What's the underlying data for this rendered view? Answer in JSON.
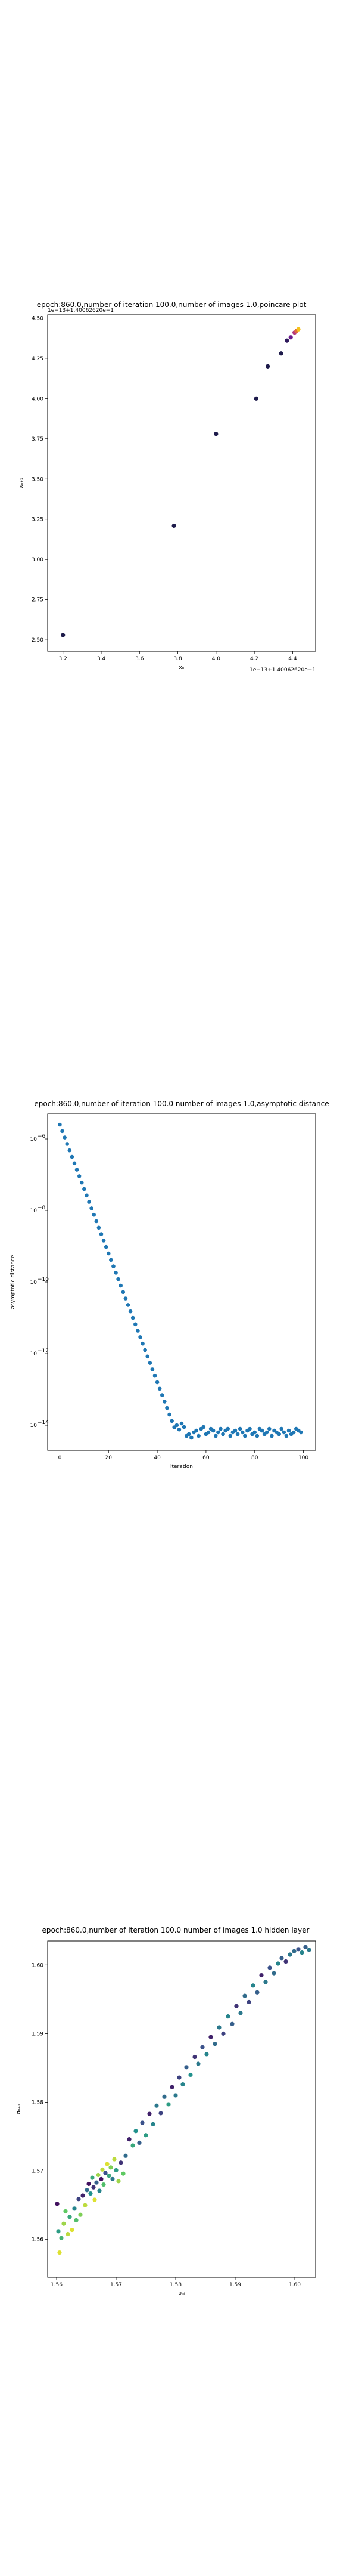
{
  "chart_data": [
    {
      "type": "scatter",
      "title": "epoch:860.0,number of iteration 100.0,number of images 1.0,poincare plot",
      "xlabel": "xₙ",
      "ylabel": "xₙ₊₁",
      "offset_text_x": "1e−13+1.40062620e−1",
      "offset_text_y": "1e−13+1.40062620e−1",
      "xlim": [
        3.12,
        4.52
      ],
      "ylim": [
        2.43,
        4.52
      ],
      "xticks": [
        3.2,
        3.4,
        3.6,
        3.8,
        4.0,
        4.2,
        4.4
      ],
      "xtick_labels": [
        "3.2",
        "3.4",
        "3.6",
        "3.8",
        "4.0",
        "4.2",
        "4.4"
      ],
      "yticks": [
        2.5,
        2.75,
        3.0,
        3.25,
        3.5,
        3.75,
        4.0,
        4.25,
        4.5
      ],
      "ytick_labels": [
        "2.50",
        "2.75",
        "3.00",
        "3.25",
        "3.50",
        "3.75",
        "4.00",
        "4.25",
        "4.50"
      ],
      "grid": false,
      "points": [
        {
          "x": 3.2,
          "y": 2.53,
          "color": "#1e1b4b"
        },
        {
          "x": 3.78,
          "y": 3.21,
          "color": "#1e1b4b"
        },
        {
          "x": 4.0,
          "y": 3.78,
          "color": "#1e1b4b"
        },
        {
          "x": 4.21,
          "y": 4.0,
          "color": "#1e1b4b"
        },
        {
          "x": 4.27,
          "y": 4.2,
          "color": "#1e1b4b"
        },
        {
          "x": 4.34,
          "y": 4.28,
          "color": "#1e1b4b"
        },
        {
          "x": 4.37,
          "y": 4.36,
          "color": "#2e1a5c"
        },
        {
          "x": 4.39,
          "y": 4.38,
          "color": "#6a1a8c"
        },
        {
          "x": 4.41,
          "y": 4.41,
          "color": "#b43a7e"
        },
        {
          "x": 4.42,
          "y": 4.42,
          "color": "#e06a3a"
        },
        {
          "x": 4.43,
          "y": 4.43,
          "color": "#f5c21a"
        }
      ]
    },
    {
      "type": "scatter",
      "title": "epoch:860.0,number of iteration 100.0  number of images 1.0,asymptotic distance",
      "xlabel": "iteration",
      "ylabel": "asymptotic distance",
      "xlim": [
        -5,
        105
      ],
      "ylim_log10": [
        -14.7,
        -5.3
      ],
      "y_scale": "log",
      "xticks": [
        0,
        20,
        40,
        60,
        80,
        100
      ],
      "xtick_labels": [
        "0",
        "20",
        "40",
        "60",
        "80",
        "100"
      ],
      "ytick_exponents": [
        -6,
        -8,
        -10,
        -12,
        -14
      ],
      "ytick_bases": [
        "10",
        "10",
        "10",
        "10",
        "10"
      ],
      "ytick_powers": [
        "−6",
        "−8",
        "−10",
        "−12",
        "−14"
      ],
      "grid": false,
      "color": "#1f77b4",
      "x": [
        0,
        1,
        2,
        3,
        4,
        5,
        6,
        7,
        8,
        9,
        10,
        11,
        12,
        13,
        14,
        15,
        16,
        17,
        18,
        19,
        20,
        21,
        22,
        23,
        24,
        25,
        26,
        27,
        28,
        29,
        30,
        31,
        32,
        33,
        34,
        35,
        36,
        37,
        38,
        39,
        40,
        41,
        42,
        43,
        44,
        45,
        46,
        47,
        48,
        49,
        50,
        51,
        52,
        53,
        54,
        55,
        56,
        57,
        58,
        59,
        60,
        61,
        62,
        63,
        64,
        65,
        66,
        67,
        68,
        69,
        70,
        71,
        72,
        73,
        74,
        75,
        76,
        77,
        78,
        79,
        80,
        81,
        82,
        83,
        84,
        85,
        86,
        87,
        88,
        89,
        90,
        91,
        92,
        93,
        94,
        95,
        96,
        97,
        98,
        99
      ],
      "log10_y": [
        -5.6,
        -5.78,
        -5.96,
        -6.14,
        -6.32,
        -6.5,
        -6.68,
        -6.86,
        -7.04,
        -7.22,
        -7.4,
        -7.58,
        -7.76,
        -7.94,
        -8.12,
        -8.3,
        -8.48,
        -8.66,
        -8.84,
        -9.02,
        -9.2,
        -9.38,
        -9.56,
        -9.74,
        -9.92,
        -10.1,
        -10.28,
        -10.46,
        -10.64,
        -10.82,
        -11.0,
        -11.18,
        -11.36,
        -11.54,
        -11.72,
        -11.9,
        -12.08,
        -12.26,
        -12.44,
        -12.62,
        -12.8,
        -12.98,
        -13.16,
        -13.34,
        -13.52,
        -13.7,
        -13.88,
        -14.06,
        -14.0,
        -14.12,
        -13.95,
        -14.05,
        -14.3,
        -14.25,
        -14.35,
        -14.2,
        -14.15,
        -14.3,
        -14.1,
        -14.05,
        -14.25,
        -14.2,
        -14.1,
        -14.15,
        -14.3,
        -14.2,
        -14.1,
        -14.25,
        -14.15,
        -14.1,
        -14.3,
        -14.2,
        -14.15,
        -14.25,
        -14.1,
        -14.2,
        -14.3,
        -14.15,
        -14.1,
        -14.25,
        -14.2,
        -14.3,
        -14.1,
        -14.15,
        -14.25,
        -14.2,
        -14.1,
        -14.3,
        -14.15,
        -14.2,
        -14.25,
        -14.1,
        -14.2,
        -14.3,
        -14.15,
        -14.25,
        -14.2,
        -14.1,
        -14.15,
        -14.2
      ]
    },
    {
      "type": "scatter",
      "title": "epoch:860.0,number of iteration 100.0  number of images 1.0 hidden layer",
      "xlabel": "σₙᵢ",
      "ylabel": "σₙ₊₁",
      "xlim": [
        1.5585,
        1.6035
      ],
      "ylim": [
        1.5545,
        1.6035
      ],
      "xticks": [
        1.56,
        1.57,
        1.58,
        1.59,
        1.6
      ],
      "xtick_labels": [
        "1.56",
        "1.57",
        "1.58",
        "1.59",
        "1.60"
      ],
      "yticks": [
        1.56,
        1.57,
        1.58,
        1.59,
        1.6
      ],
      "ytick_labels": [
        "1.56",
        "1.57",
        "1.58",
        "1.59",
        "1.60"
      ],
      "grid": false,
      "points": [
        {
          "x": 1.5601,
          "y": 1.5652,
          "c": 0.05
        },
        {
          "x": 1.5603,
          "y": 1.5612,
          "c": 0.55
        },
        {
          "x": 1.5605,
          "y": 1.5581,
          "c": 0.95
        },
        {
          "x": 1.5608,
          "y": 1.5602,
          "c": 0.65
        },
        {
          "x": 1.5612,
          "y": 1.5623,
          "c": 0.85
        },
        {
          "x": 1.5615,
          "y": 1.5641,
          "c": 0.75
        },
        {
          "x": 1.5619,
          "y": 1.5608,
          "c": 0.9
        },
        {
          "x": 1.5622,
          "y": 1.5633,
          "c": 0.6
        },
        {
          "x": 1.5626,
          "y": 1.5614,
          "c": 0.95
        },
        {
          "x": 1.563,
          "y": 1.5645,
          "c": 0.45
        },
        {
          "x": 1.5633,
          "y": 1.5628,
          "c": 0.7
        },
        {
          "x": 1.5637,
          "y": 1.5659,
          "c": 0.2
        },
        {
          "x": 1.564,
          "y": 1.5636,
          "c": 0.8
        },
        {
          "x": 1.5644,
          "y": 1.5664,
          "c": 0.1
        },
        {
          "x": 1.5648,
          "y": 1.565,
          "c": 0.9
        },
        {
          "x": 1.5651,
          "y": 1.5672,
          "c": 0.35
        },
        {
          "x": 1.5654,
          "y": 1.5681,
          "c": 0.05
        },
        {
          "x": 1.5657,
          "y": 1.5667,
          "c": 0.5
        },
        {
          "x": 1.566,
          "y": 1.569,
          "c": 0.6
        },
        {
          "x": 1.5662,
          "y": 1.5676,
          "c": 0.15
        },
        {
          "x": 1.5664,
          "y": 1.5658,
          "c": 0.95
        },
        {
          "x": 1.5667,
          "y": 1.5683,
          "c": 0.3
        },
        {
          "x": 1.567,
          "y": 1.5694,
          "c": 0.85
        },
        {
          "x": 1.5672,
          "y": 1.5671,
          "c": 0.45
        },
        {
          "x": 1.5675,
          "y": 1.5688,
          "c": 0.05
        },
        {
          "x": 1.5677,
          "y": 1.5702,
          "c": 0.9
        },
        {
          "x": 1.5679,
          "y": 1.568,
          "c": 0.7
        },
        {
          "x": 1.5682,
          "y": 1.5697,
          "c": 0.25
        },
        {
          "x": 1.5685,
          "y": 1.571,
          "c": 0.95
        },
        {
          "x": 1.5688,
          "y": 1.5693,
          "c": 0.6
        },
        {
          "x": 1.5691,
          "y": 1.5705,
          "c": 0.8
        },
        {
          "x": 1.5694,
          "y": 1.5688,
          "c": 0.4
        },
        {
          "x": 1.5697,
          "y": 1.5717,
          "c": 0.9
        },
        {
          "x": 1.57,
          "y": 1.5701,
          "c": 0.55
        },
        {
          "x": 1.5704,
          "y": 1.5685,
          "c": 0.85
        },
        {
          "x": 1.5708,
          "y": 1.5712,
          "c": 0.15
        },
        {
          "x": 1.5712,
          "y": 1.5696,
          "c": 0.75
        },
        {
          "x": 1.5716,
          "y": 1.5722,
          "c": 0.35
        },
        {
          "x": 1.5722,
          "y": 1.5746,
          "c": 0.1
        },
        {
          "x": 1.5728,
          "y": 1.5737,
          "c": 0.6
        },
        {
          "x": 1.5733,
          "y": 1.5758,
          "c": 0.5
        },
        {
          "x": 1.5739,
          "y": 1.5741,
          "c": 0.3
        },
        {
          "x": 1.5744,
          "y": 1.577,
          "c": 0.25
        },
        {
          "x": 1.575,
          "y": 1.5752,
          "c": 0.55
        },
        {
          "x": 1.5756,
          "y": 1.5783,
          "c": 0.1
        },
        {
          "x": 1.5762,
          "y": 1.5768,
          "c": 0.45
        },
        {
          "x": 1.5768,
          "y": 1.5795,
          "c": 0.4
        },
        {
          "x": 1.5775,
          "y": 1.5784,
          "c": 0.2
        },
        {
          "x": 1.5781,
          "y": 1.5808,
          "c": 0.35
        },
        {
          "x": 1.5788,
          "y": 1.5797,
          "c": 0.55
        },
        {
          "x": 1.5794,
          "y": 1.5822,
          "c": 0.1
        },
        {
          "x": 1.58,
          "y": 1.581,
          "c": 0.4
        },
        {
          "x": 1.5806,
          "y": 1.5836,
          "c": 0.2
        },
        {
          "x": 1.5812,
          "y": 1.5826,
          "c": 0.45
        },
        {
          "x": 1.5818,
          "y": 1.5851,
          "c": 0.3
        },
        {
          "x": 1.5825,
          "y": 1.584,
          "c": 0.5
        },
        {
          "x": 1.5832,
          "y": 1.5866,
          "c": 0.15
        },
        {
          "x": 1.5838,
          "y": 1.5856,
          "c": 0.4
        },
        {
          "x": 1.5845,
          "y": 1.588,
          "c": 0.25
        },
        {
          "x": 1.5852,
          "y": 1.587,
          "c": 0.45
        },
        {
          "x": 1.5859,
          "y": 1.5895,
          "c": 0.1
        },
        {
          "x": 1.5866,
          "y": 1.5885,
          "c": 0.35
        },
        {
          "x": 1.5873,
          "y": 1.5909,
          "c": 0.4
        },
        {
          "x": 1.588,
          "y": 1.59,
          "c": 0.2
        },
        {
          "x": 1.5888,
          "y": 1.5925,
          "c": 0.45
        },
        {
          "x": 1.5895,
          "y": 1.5914,
          "c": 0.3
        },
        {
          "x": 1.5902,
          "y": 1.594,
          "c": 0.15
        },
        {
          "x": 1.5909,
          "y": 1.593,
          "c": 0.4
        },
        {
          "x": 1.5916,
          "y": 1.5955,
          "c": 0.35
        },
        {
          "x": 1.5923,
          "y": 1.5946,
          "c": 0.2
        },
        {
          "x": 1.593,
          "y": 1.597,
          "c": 0.45
        },
        {
          "x": 1.5937,
          "y": 1.596,
          "c": 0.3
        },
        {
          "x": 1.5944,
          "y": 1.5985,
          "c": 0.1
        },
        {
          "x": 1.5951,
          "y": 1.5975,
          "c": 0.4
        },
        {
          "x": 1.5958,
          "y": 1.5996,
          "c": 0.25
        },
        {
          "x": 1.5965,
          "y": 1.5988,
          "c": 0.35
        },
        {
          "x": 1.5972,
          "y": 1.6002,
          "c": 0.45
        },
        {
          "x": 1.5978,
          "y": 1.601,
          "c": 0.3
        },
        {
          "x": 1.5985,
          "y": 1.6005,
          "c": 0.15
        },
        {
          "x": 1.5992,
          "y": 1.6015,
          "c": 0.4
        },
        {
          "x": 1.5999,
          "y": 1.602,
          "c": 0.35
        },
        {
          "x": 1.6006,
          "y": 1.6023,
          "c": 0.25
        },
        {
          "x": 1.6012,
          "y": 1.6018,
          "c": 0.45
        },
        {
          "x": 1.6018,
          "y": 1.6026,
          "c": 0.3
        },
        {
          "x": 1.6024,
          "y": 1.6022,
          "c": 0.4
        }
      ]
    }
  ]
}
